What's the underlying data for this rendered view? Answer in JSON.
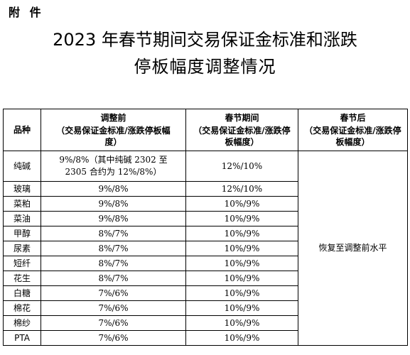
{
  "attachment_label": "附 件",
  "title_line1": "2023 年春节期间交易保证金标准和涨跌",
  "title_line2": "停板幅度调整情况",
  "table": {
    "headers": {
      "col1": "品种",
      "col2_main": "调整前",
      "col2_sub": "（交易保证金标准/涨跌停板幅度）",
      "col3_main": "春节期间",
      "col3_sub": "（交易保证金标准/涨跌停板幅度）",
      "col4_main": "春节后",
      "col4_sub": "（交易保证金标准/涨跌停板幅度）"
    },
    "after_value": "恢复至调整前水平",
    "rows": [
      {
        "name": "纯碱",
        "before": "9%/8%（其中纯碱 2302 至 2305 合约为 12%/8%）",
        "during": "12%/10%"
      },
      {
        "name": "玻璃",
        "before": "9%/8%",
        "during": "12%/10%"
      },
      {
        "name": "菜粕",
        "before": "9%/8%",
        "during": "10%/9%"
      },
      {
        "name": "菜油",
        "before": "9%/8%",
        "during": "10%/9%"
      },
      {
        "name": "甲醇",
        "before": "8%/7%",
        "during": "10%/9%"
      },
      {
        "name": "尿素",
        "before": "8%/7%",
        "during": "10%/9%"
      },
      {
        "name": "短纤",
        "before": "8%/7%",
        "during": "10%/9%"
      },
      {
        "name": "花生",
        "before": "8%/7%",
        "during": "10%/9%"
      },
      {
        "name": "白糖",
        "before": "7%/6%",
        "during": "10%/9%"
      },
      {
        "name": "棉花",
        "before": "7%/6%",
        "during": "10%/9%"
      },
      {
        "name": "棉纱",
        "before": "7%/6%",
        "during": "10%/9%"
      },
      {
        "name": "PTA",
        "before": "7%/6%",
        "during": "10%/9%"
      }
    ]
  }
}
